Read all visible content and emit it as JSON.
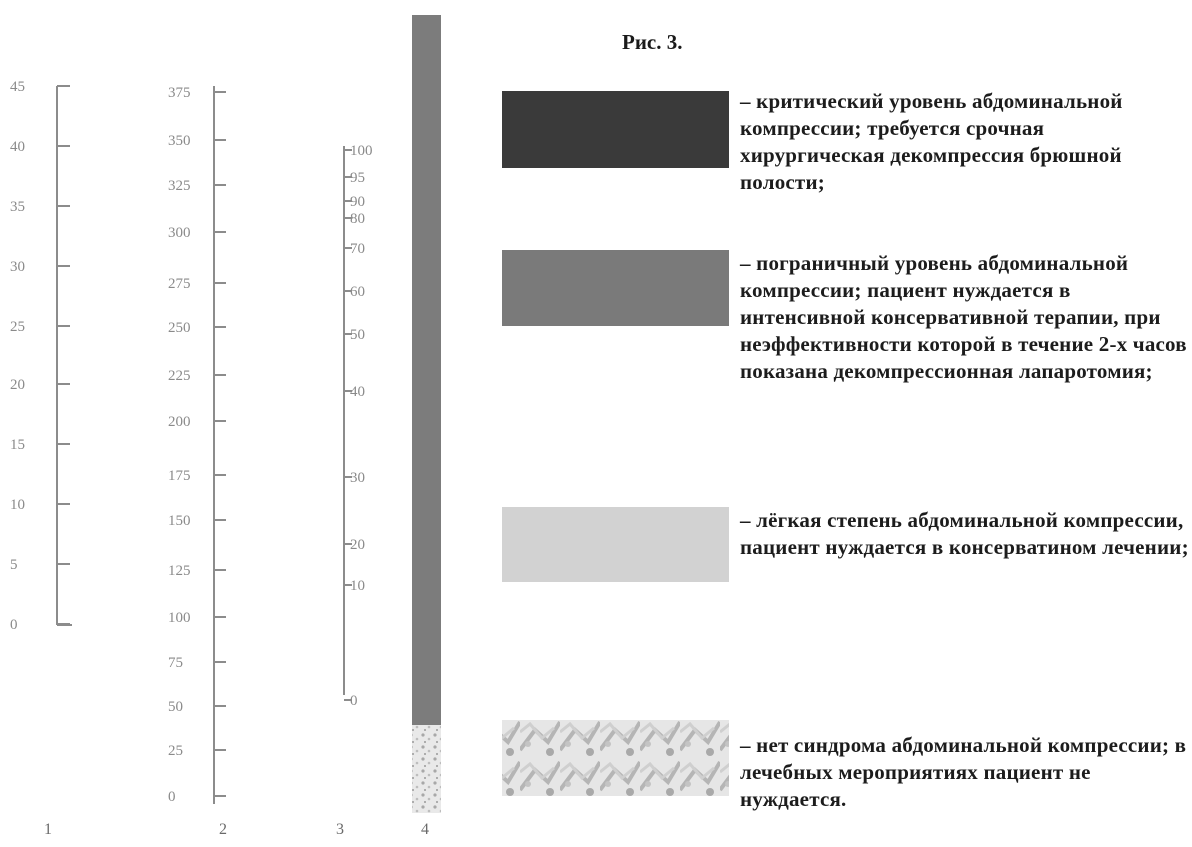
{
  "figure": {
    "title": "Рис. 3.",
    "scales": [
      {
        "label": "1",
        "ticks": [
          "45",
          "40",
          "35",
          "30",
          "25",
          "20",
          "15",
          "10",
          "5",
          "0"
        ]
      },
      {
        "label": "2",
        "ticks": [
          "375",
          "350",
          "325",
          "300",
          "275",
          "250",
          "225",
          "200",
          "175",
          "150",
          "125",
          "100",
          "75",
          "50",
          "25",
          "0"
        ]
      },
      {
        "label": "3",
        "ticks": [
          "100",
          "95",
          "90",
          "80",
          "70",
          "60",
          "50",
          "40",
          "30",
          "20",
          "10",
          "0"
        ]
      },
      {
        "label": "4"
      }
    ],
    "colors": {
      "critical": "#3a3a3a",
      "borderline": "#7a7a7a",
      "mild": "#d2d2d2",
      "bar": "#7c7c7c",
      "scale_line": "#8c8c8c"
    },
    "legend": [
      {
        "key": "critical",
        "text": "– критический уровень абдоминальной компрессии; требуется срочная хирургическая декомпрессия брюшной полости;"
      },
      {
        "key": "borderline",
        "text": "– пограничный уровень абдоминальной компрессии; пациент нуждается в интенсивной консервативной терапии, при неэффективности которой в течение 2-х часов показана декомпрессионная лапаротомия;"
      },
      {
        "key": "mild",
        "text": "– лёгкая степень абдоминальной компрессии, пациент нуждается в консерватином лечении;"
      },
      {
        "key": "none",
        "text": "– нет синдрома абдоминальной компрессии; в лечебных мероприятиях пациент не нуждается."
      }
    ]
  }
}
